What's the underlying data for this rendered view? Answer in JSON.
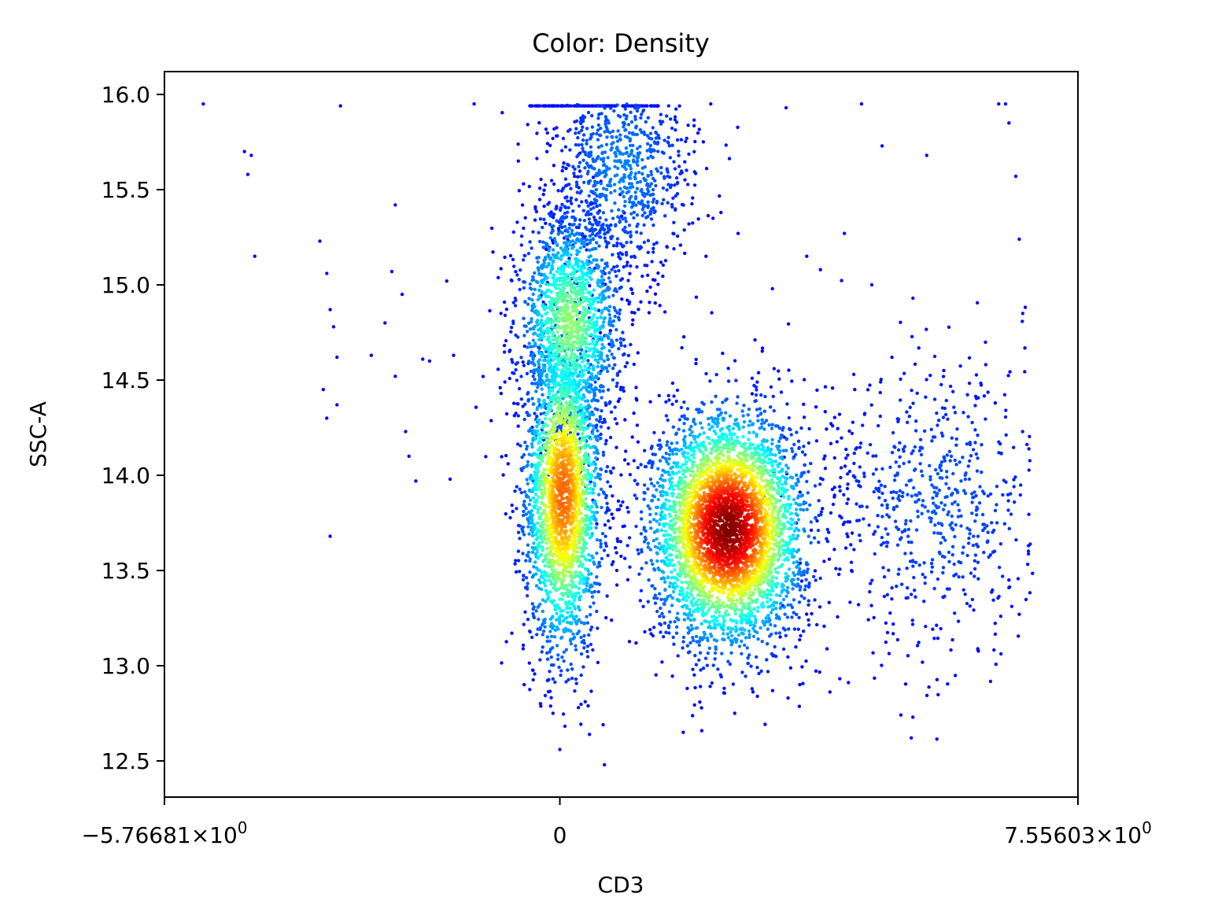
{
  "chart_data": {
    "type": "scatter",
    "title": "Color: Density",
    "xlabel": "CD3",
    "ylabel": "SSC-A",
    "xlim": [
      -5.76681,
      7.55603
    ],
    "ylim": [
      12.31,
      16.12
    ],
    "x_ticks": [
      {
        "value": -5.76681,
        "label": "−5.76681×10^0"
      },
      {
        "value": 0,
        "label": "0"
      },
      {
        "value": 7.55603,
        "label": "7.55603×10^0"
      }
    ],
    "y_ticks": [
      {
        "value": 16.0,
        "label": "16.0"
      },
      {
        "value": 15.5,
        "label": "15.5"
      },
      {
        "value": 15.0,
        "label": "15.0"
      },
      {
        "value": 14.5,
        "label": "14.5"
      },
      {
        "value": 14.0,
        "label": "14.0"
      },
      {
        "value": 13.5,
        "label": "13.5"
      },
      {
        "value": 13.0,
        "label": "13.0"
      },
      {
        "value": 12.5,
        "label": "12.5"
      }
    ],
    "colormap": "jet",
    "grid": false,
    "populations": [
      {
        "center": [
          0.05,
          13.9
        ],
        "spread": [
          0.28,
          0.42
        ],
        "peak_density": 0.75
      },
      {
        "center": [
          0.15,
          14.8
        ],
        "spread": [
          0.38,
          0.3
        ],
        "peak_density": 0.45
      },
      {
        "center": [
          2.45,
          13.72
        ],
        "spread": [
          0.55,
          0.3
        ],
        "peak_density": 1.0
      },
      {
        "center": [
          0.9,
          15.6
        ],
        "spread": [
          0.55,
          0.3
        ],
        "peak_density": 0.15
      },
      {
        "center": [
          5.5,
          13.85
        ],
        "spread": [
          0.9,
          0.4
        ],
        "peak_density": 0.1
      }
    ],
    "scattered_points": [
      [
        -5.2,
        15.95
      ],
      [
        -4.6,
        15.7
      ],
      [
        -4.5,
        15.68
      ],
      [
        -4.55,
        15.58
      ],
      [
        -4.45,
        15.15
      ],
      [
        -3.5,
        15.23
      ],
      [
        -3.4,
        15.06
      ],
      [
        -3.35,
        14.87
      ],
      [
        -3.3,
        14.78
      ],
      [
        -3.25,
        14.62
      ],
      [
        -3.45,
        14.45
      ],
      [
        -3.4,
        14.3
      ],
      [
        -3.25,
        14.37
      ],
      [
        -2.75,
        14.63
      ],
      [
        -2.55,
        14.8
      ],
      [
        -2.45,
        15.07
      ],
      [
        -2.4,
        14.52
      ],
      [
        -2.25,
        14.23
      ],
      [
        -2.2,
        14.1
      ],
      [
        -2.1,
        13.97
      ],
      [
        -2.0,
        14.61
      ],
      [
        -1.9,
        14.6
      ],
      [
        -1.65,
        15.02
      ],
      [
        -1.55,
        14.63
      ],
      [
        -1.6,
        13.98
      ],
      [
        -3.35,
        13.68
      ],
      [
        -2.4,
        15.42
      ],
      [
        -1.25,
        15.95
      ],
      [
        -3.2,
        15.94
      ],
      [
        -2.3,
        14.95
      ],
      [
        2.2,
        15.95
      ],
      [
        2.35,
        15.38
      ],
      [
        2.6,
        15.27
      ],
      [
        3.3,
        15.93
      ],
      [
        4.4,
        15.95
      ],
      [
        4.7,
        15.73
      ],
      [
        5.35,
        15.68
      ],
      [
        6.4,
        15.95
      ],
      [
        6.5,
        15.95
      ],
      [
        6.55,
        15.85
      ],
      [
        6.65,
        15.57
      ],
      [
        6.7,
        15.24
      ],
      [
        6.75,
        14.85
      ],
      [
        6.35,
        14.38
      ],
      [
        4.55,
        15.0
      ],
      [
        5.15,
        14.93
      ],
      [
        3.6,
        15.15
      ],
      [
        4.15,
        15.27
      ],
      [
        3.8,
        15.08
      ],
      [
        1.8,
        12.65
      ],
      [
        0.65,
        12.48
      ],
      [
        0.0,
        12.56
      ],
      [
        -0.1,
        12.75
      ],
      [
        2.55,
        12.75
      ],
      [
        3.1,
        14.98
      ],
      [
        4.3,
        14.45
      ],
      [
        5.6,
        14.55
      ],
      [
        6.1,
        13.08
      ],
      [
        6.55,
        13.45
      ],
      [
        6.7,
        13.27
      ]
    ],
    "saturated_row_y": 15.94,
    "saturated_row_x": [
      -0.45,
      1.45
    ]
  }
}
